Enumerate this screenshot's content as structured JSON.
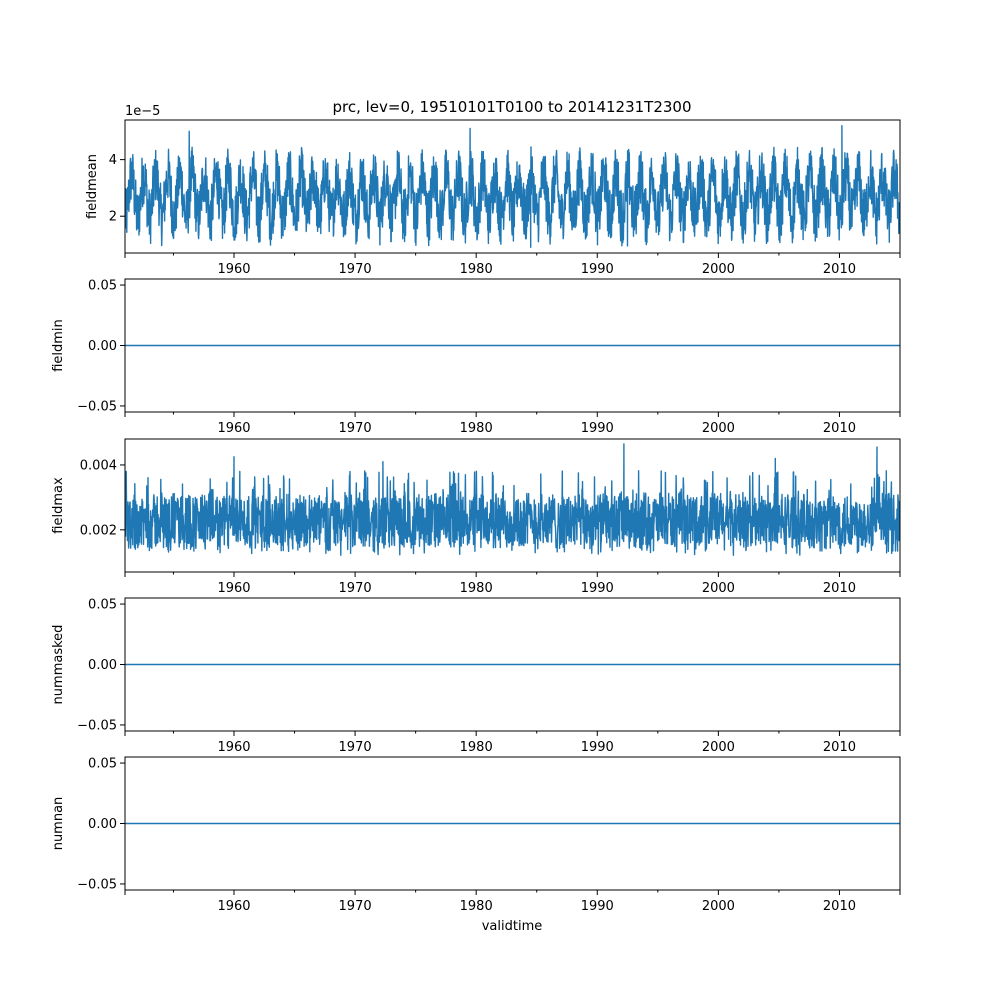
{
  "figure": {
    "title": "prc, lev=0, 19510101T0100 to 20141231T2300",
    "xlabel": "validtime",
    "line_color": "#1f77b4"
  },
  "chart_data": [
    {
      "type": "line",
      "ylabel": "fieldmean",
      "offset_label": "1e−5",
      "xlim": [
        1951.0,
        2015.0
      ],
      "ylim": [
        0.7,
        5.4
      ],
      "x_ticks": [
        1960,
        1970,
        1980,
        1990,
        2000,
        2010
      ],
      "x_tick_labels": [
        "1960",
        "1970",
        "1980",
        "1990",
        "2000",
        "2010"
      ],
      "y_ticks": [
        2,
        4
      ],
      "y_tick_labels": [
        "2",
        "4"
      ],
      "series": [
        {
          "values_summary": "dense seasonal signal, scaled by 1e-5",
          "baseline": 2.7,
          "typical_low": 1.6,
          "typical_high": 4.3,
          "min": 0.85,
          "max": 5.2,
          "peaks": [
            [
              1956.3,
              5.0
            ],
            [
              1979.5,
              5.1
            ],
            [
              1984.5,
              0.9
            ],
            [
              1992.5,
              0.95
            ],
            [
              2010.2,
              5.2
            ]
          ]
        }
      ]
    },
    {
      "type": "line",
      "ylabel": "fieldmin",
      "xlim": [
        1951.0,
        2015.0
      ],
      "ylim": [
        -0.055,
        0.055
      ],
      "x_ticks": [
        1960,
        1970,
        1980,
        1990,
        2000,
        2010
      ],
      "x_tick_labels": [
        "1960",
        "1970",
        "1980",
        "1990",
        "2000",
        "2010"
      ],
      "y_ticks": [
        -0.05,
        0.0,
        0.05
      ],
      "y_tick_labels": [
        "−0.05",
        "0.00",
        "0.05"
      ],
      "series": [
        {
          "constant": 0.0
        }
      ]
    },
    {
      "type": "line",
      "ylabel": "fieldmax",
      "xlim": [
        1951.0,
        2015.0
      ],
      "ylim": [
        0.0007,
        0.0048
      ],
      "x_ticks": [
        1960,
        1970,
        1980,
        1990,
        2000,
        2010
      ],
      "x_tick_labels": [
        "1960",
        "1970",
        "1980",
        "1990",
        "2000",
        "2010"
      ],
      "y_ticks": [
        0.002,
        0.004
      ],
      "y_tick_labels": [
        "0.002",
        "0.004"
      ],
      "series": [
        {
          "values_summary": "dense noisy signal",
          "typical_low": 0.0012,
          "typical_high": 0.0033,
          "min": 0.0009,
          "max": 0.00465,
          "peaks": [
            [
              1960.0,
              0.00425
            ],
            [
              1972.3,
              0.0041
            ],
            [
              1992.2,
              0.00465
            ],
            [
              2004.7,
              0.0042
            ],
            [
              2013.1,
              0.00455
            ]
          ]
        }
      ]
    },
    {
      "type": "line",
      "ylabel": "nummasked",
      "xlim": [
        1951.0,
        2015.0
      ],
      "ylim": [
        -0.055,
        0.055
      ],
      "x_ticks": [
        1960,
        1970,
        1980,
        1990,
        2000,
        2010
      ],
      "x_tick_labels": [
        "1960",
        "1970",
        "1980",
        "1990",
        "2000",
        "2010"
      ],
      "y_ticks": [
        -0.05,
        0.0,
        0.05
      ],
      "y_tick_labels": [
        "−0.05",
        "0.00",
        "0.05"
      ],
      "series": [
        {
          "constant": 0.0
        }
      ]
    },
    {
      "type": "line",
      "ylabel": "numnan",
      "xlim": [
        1951.0,
        2015.0
      ],
      "ylim": [
        -0.055,
        0.055
      ],
      "x_ticks": [
        1960,
        1970,
        1980,
        1990,
        2000,
        2010
      ],
      "x_tick_labels": [
        "1960",
        "1970",
        "1980",
        "1990",
        "2000",
        "2010"
      ],
      "y_ticks": [
        -0.05,
        0.0,
        0.05
      ],
      "y_tick_labels": [
        "−0.05",
        "0.00",
        "0.05"
      ],
      "series": [
        {
          "constant": 0.0
        }
      ]
    }
  ]
}
